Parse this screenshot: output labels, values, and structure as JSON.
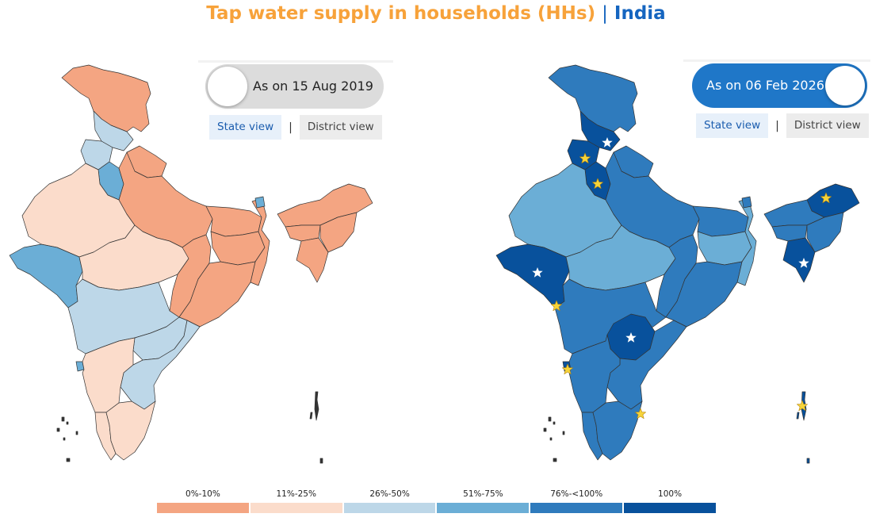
{
  "title": {
    "main": "Tap water supply in households (HHs)",
    "separator": "|",
    "region": "India"
  },
  "left_panel": {
    "toggle_label": "As on 15 Aug 2019",
    "state_view_label": "State view",
    "district_view_label": "District view",
    "separator": "|"
  },
  "right_panel": {
    "toggle_label": "As on 06 Feb 2026",
    "state_view_label": "State view",
    "district_view_label": "District view",
    "separator": "|"
  },
  "legend": {
    "items": [
      {
        "label": "0%-10%",
        "color": "#f4a582"
      },
      {
        "label": "11%-25%",
        "color": "#fbdccb"
      },
      {
        "label": "26%-50%",
        "color": "#bdd7e8"
      },
      {
        "label": "51%-75%",
        "color": "#6baed6"
      },
      {
        "label": "76%-<100%",
        "color": "#2f7bbd"
      },
      {
        "label": "100%",
        "color": "#08519c"
      }
    ]
  },
  "colors": {
    "title_orange": "#f7a23a",
    "title_blue": "#1565c0",
    "toggle_on": "#1f77c8",
    "toggle_off": "#dcdcdc",
    "star_gold": "#f6d43a"
  }
}
